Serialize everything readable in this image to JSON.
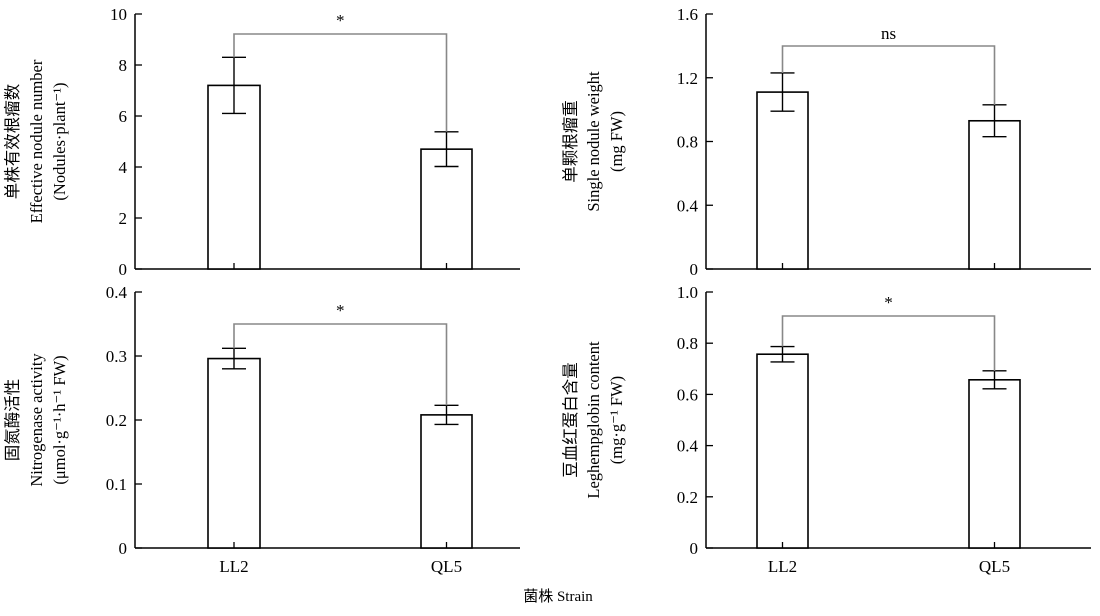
{
  "xlabel": "菌株 Strain",
  "chart_data": [
    {
      "type": "bar",
      "panel": "top-left",
      "categories": [
        "LL2",
        "QL5"
      ],
      "values": [
        7.2,
        4.7
      ],
      "errors": [
        1.1,
        0.68
      ],
      "ylim": [
        0,
        10
      ],
      "yticks": [
        "0",
        "2",
        "4",
        "6",
        "8",
        "10"
      ],
      "ylabel": [
        "单株有效根瘤数",
        "Effective nodule number",
        "(Nodules·plant⁻¹)"
      ],
      "significance": "*",
      "xticks_shown": false,
      "title": "",
      "xlabel": ""
    },
    {
      "type": "bar",
      "panel": "top-right",
      "categories": [
        "LL2",
        "QL5"
      ],
      "values": [
        1.11,
        0.93
      ],
      "errors": [
        0.12,
        0.1
      ],
      "ylim": [
        0,
        1.6
      ],
      "yticks": [
        "0",
        "0.4",
        "0.8",
        "1.2",
        "1.6"
      ],
      "ylabel": [
        "单颗根瘤重",
        "Single nodule weight",
        "(mg FW)"
      ],
      "significance": "ns",
      "xticks_shown": false,
      "title": "",
      "xlabel": ""
    },
    {
      "type": "bar",
      "panel": "bottom-left",
      "categories": [
        "LL2",
        "QL5"
      ],
      "values": [
        0.296,
        0.208
      ],
      "errors": [
        0.016,
        0.015
      ],
      "ylim": [
        0,
        0.4
      ],
      "yticks": [
        "0",
        "0.1",
        "0.2",
        "0.3",
        "0.4"
      ],
      "ylabel": [
        "固氮酶活性",
        "Nitrogenase activity",
        "(μmol·g⁻¹·h⁻¹ FW)"
      ],
      "significance": "*",
      "xticks_shown": true,
      "title": "",
      "xlabel": ""
    },
    {
      "type": "bar",
      "panel": "bottom-right",
      "categories": [
        "LL2",
        "QL5"
      ],
      "values": [
        0.757,
        0.657
      ],
      "errors": [
        0.03,
        0.035
      ],
      "ylim": [
        0,
        1.0
      ],
      "yticks": [
        "0",
        "0.2",
        "0.4",
        "0.6",
        "0.8",
        "1.0"
      ],
      "ylabel": [
        "豆血红蛋白含量",
        "Leghempglobin content",
        "(mg·g⁻¹ FW)"
      ],
      "significance": "*",
      "xticks_shown": true,
      "title": "",
      "xlabel": ""
    }
  ]
}
